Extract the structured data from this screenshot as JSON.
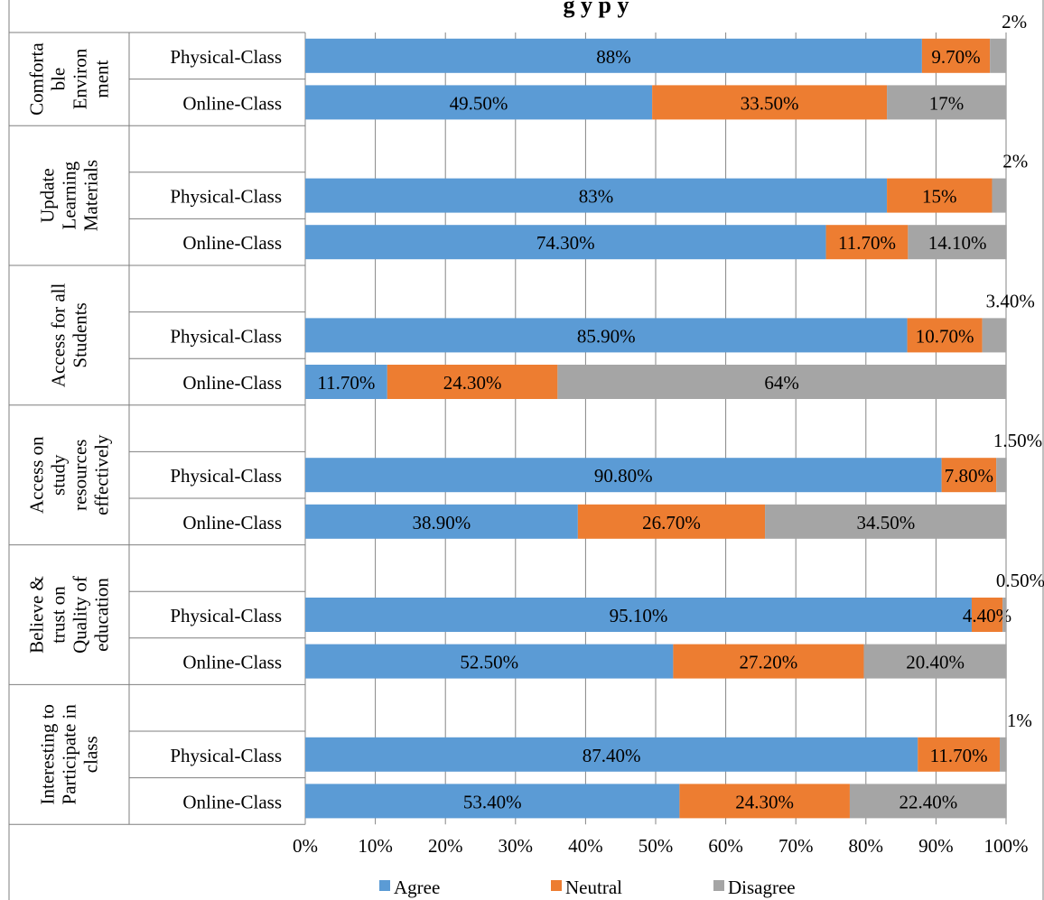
{
  "chart_data": {
    "type": "bar",
    "orientation": "horizontal",
    "stacked": "percent",
    "title": "g                                       y                                 p  y",
    "xlim": [
      0,
      100
    ],
    "x_ticks": [
      "0%",
      "10%",
      "20%",
      "30%",
      "40%",
      "50%",
      "60%",
      "70%",
      "80%",
      "90%",
      "100%"
    ],
    "grid": "vertical",
    "legend_position": "bottom",
    "series": [
      {
        "name": "Agree",
        "color": "#5b9bd5"
      },
      {
        "name": "Neutral",
        "color": "#ed7d31"
      },
      {
        "name": "Disagree",
        "color": "#a5a5a5"
      }
    ],
    "groups": [
      {
        "label_lines": [
          "Comforta",
          "ble",
          "Environ",
          "ment"
        ],
        "has_spacer_row": false,
        "rows": [
          {
            "label": "Physical-Class",
            "values": [
              88,
              9.7,
              2.3
            ],
            "labels": [
              "88%",
              "9.70%",
              "2%"
            ]
          },
          {
            "label": "Online-Class",
            "values": [
              49.5,
              33.5,
              17
            ],
            "labels": [
              "49.50%",
              "33.50%",
              "17%"
            ]
          }
        ]
      },
      {
        "label_lines": [
          "Update",
          "Learning",
          "Materials"
        ],
        "has_spacer_row": true,
        "rows": [
          {
            "label": "Physical-Class",
            "values": [
              83,
              15,
              2
            ],
            "labels": [
              "83%",
              "15%",
              "2%"
            ]
          },
          {
            "label": "Online-Class",
            "values": [
              74.3,
              11.7,
              14.1
            ],
            "labels": [
              "74.30%",
              "11.70%",
              "14.10%"
            ]
          }
        ]
      },
      {
        "label_lines": [
          "Access for all",
          "Students"
        ],
        "has_spacer_row": true,
        "rows": [
          {
            "label": "Physical-Class",
            "values": [
              85.9,
              10.7,
              3.4
            ],
            "labels": [
              "85.90%",
              "10.70%",
              "3.40%"
            ]
          },
          {
            "label": "Online-Class",
            "values": [
              11.7,
              24.3,
              64
            ],
            "labels": [
              "11.70%",
              "24.30%",
              "64%"
            ]
          }
        ]
      },
      {
        "label_lines": [
          "Access on",
          "study",
          "resources",
          "effectively"
        ],
        "has_spacer_row": true,
        "rows": [
          {
            "label": "Physical-Class",
            "values": [
              90.8,
              7.8,
              1.5
            ],
            "labels": [
              "90.80%",
              "7.80%",
              "1.50%"
            ]
          },
          {
            "label": "Online-Class",
            "values": [
              38.9,
              26.7,
              34.5
            ],
            "labels": [
              "38.90%",
              "26.70%",
              "34.50%"
            ]
          }
        ]
      },
      {
        "label_lines": [
          "Believe &",
          "trust on",
          "Quality of",
          "education"
        ],
        "has_spacer_row": true,
        "rows": [
          {
            "label": "Physical-Class",
            "values": [
              95.1,
              4.4,
              0.5
            ],
            "labels": [
              "95.10%",
              "4.40%",
              "0.50%"
            ]
          },
          {
            "label": "Online-Class",
            "values": [
              52.5,
              27.2,
              20.4
            ],
            "labels": [
              "52.50%",
              "27.20%",
              "20.40%"
            ]
          }
        ]
      },
      {
        "label_lines": [
          "Interesting to",
          "Participate in",
          "class"
        ],
        "has_spacer_row": true,
        "rows": [
          {
            "label": "Physical-Class",
            "values": [
              87.4,
              11.7,
              1
            ],
            "labels": [
              "87.40%",
              "11.70%",
              "1%"
            ]
          },
          {
            "label": "Online-Class",
            "values": [
              53.4,
              24.3,
              22.4
            ],
            "labels": [
              "53.40%",
              "24.30%",
              "22.40%"
            ]
          }
        ]
      }
    ]
  }
}
